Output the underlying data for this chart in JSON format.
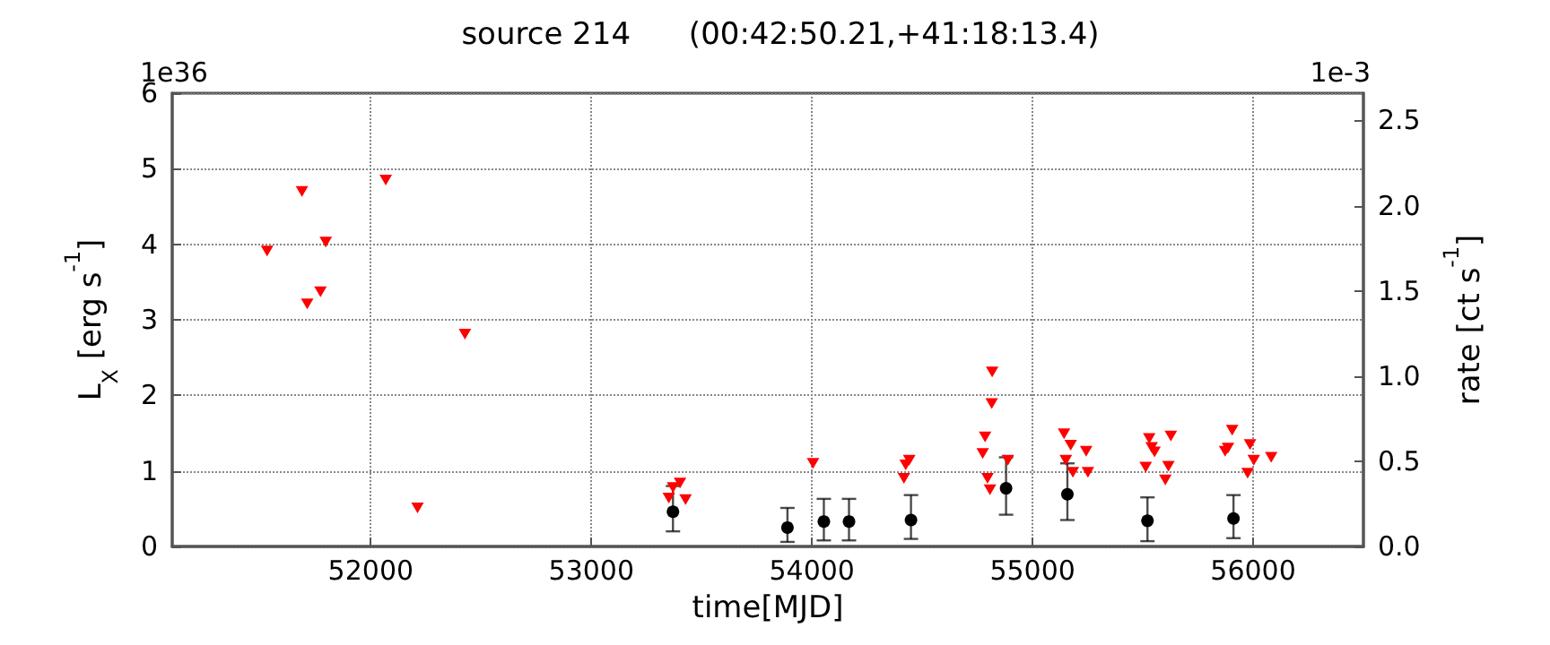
{
  "chart_data": {
    "type": "scatter",
    "title": "source 214      (00:42:50.21,+41:18:13.4)",
    "xlabel": "time[MJD]",
    "ylabel": "L$_{X}$ [erg s$^{-1}$]",
    "y2label": "rate [ct s$^{-1}$]",
    "annotations": [
      "1e36",
      "1e-3"
    ],
    "series": [
      {
        "color": "#ff0000",
        "marker": "triangle",
        "x": [
          51530,
          51688,
          51712,
          51772,
          51796,
          52068,
          52212,
          52427,
          53351,
          53370,
          53402,
          53427,
          54005,
          54417,
          54425,
          54441,
          54774,
          54785,
          54796,
          54807,
          54815,
          54817,
          54888,
          55143,
          55151,
          55173,
          55183,
          55243,
          55251,
          55513,
          55529,
          55540,
          55553,
          55602,
          55616,
          55627,
          55873,
          55886,
          55905,
          55975,
          55986,
          56003,
          56082
        ],
        "values": [
          3.91,
          4.7,
          3.21,
          3.37,
          4.03,
          4.85,
          0.51,
          2.81,
          0.64,
          0.78,
          0.84,
          0.62,
          1.1,
          0.9,
          1.08,
          1.14,
          1.23,
          1.45,
          0.9,
          0.75,
          1.89,
          2.31,
          1.14,
          1.49,
          1.14,
          1.34,
          0.98,
          1.26,
          0.98,
          1.05,
          1.43,
          1.31,
          1.25,
          0.88,
          1.06,
          1.46,
          1.26,
          1.3,
          1.54,
          0.97,
          1.35,
          1.14,
          1.18
        ]
      },
      {
        "color": "#000000",
        "marker": "circle",
        "x": [
          53370,
          53889,
          54054,
          54168,
          54449,
          54880,
          55158,
          55521,
          55911
        ],
        "values": [
          0.46,
          0.25,
          0.33,
          0.33,
          0.35,
          0.77,
          0.69,
          0.34,
          0.37
        ],
        "errors": [
          [
            0.2,
            0.8
          ],
          [
            0.06,
            0.51
          ],
          [
            0.08,
            0.63
          ],
          [
            0.08,
            0.63
          ],
          [
            0.1,
            0.68
          ],
          [
            0.42,
            1.18
          ],
          [
            0.35,
            1.1
          ],
          [
            0.07,
            0.65
          ],
          [
            0.11,
            0.68
          ]
        ]
      }
    ],
    "xlim": [
      51100,
      56500
    ],
    "xticks": [
      52000,
      53000,
      54000,
      55000,
      56000
    ],
    "ylim": [
      0,
      6
    ],
    "yticks": [
      0,
      1,
      2,
      3,
      4,
      5,
      6
    ],
    "y2lim": [
      0,
      2.66
    ],
    "y2ticks": [
      {
        "value": 0,
        "label": "0.0"
      },
      {
        "value": 0.5,
        "label": "0.5"
      },
      {
        "value": 1,
        "label": "1.0"
      },
      {
        "value": 1.5,
        "label": "1.5"
      },
      {
        "value": 2,
        "label": "2.0"
      },
      {
        "value": 2.5,
        "label": "2.5"
      }
    ],
    "grid": true
  }
}
